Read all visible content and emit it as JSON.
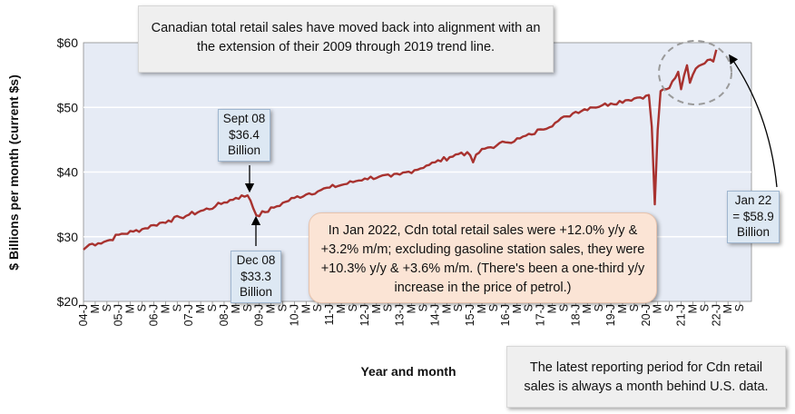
{
  "notes": {
    "top": "Canadian total retail sales have moved back into alignment with an the extension of their 2009 through 2019 trend line.",
    "middle": "In Jan 2022, Cdn total retail sales were +12.0% y/y & +3.2% m/m; excluding gasoline station sales, they were +10.3% y/y & +3.6% m/m. (There's been a one-third y/y increase in the price of petrol.)",
    "bottom": "The latest reporting period for Cdn retail sales is always a month behind U.S. data."
  },
  "callouts": {
    "sept08": "Sept 08 $36.4 Billion",
    "dec08": "Dec 08 $33.3 Billion",
    "jan22": "Jan 22 = $58.9 Billion"
  },
  "colors": {
    "line": "#a8322f",
    "plot_bg": "#e6ebf5",
    "gridline": "#ffffff",
    "mid_note_bg": "#fbe4d5",
    "callout_bg": "#dde8f3",
    "note_bg": "#efefef",
    "ellipse": "#9a9a9a"
  },
  "chart_data": {
    "type": "line",
    "title": "",
    "xlabel": "Year and month",
    "ylabel": "$ Billions per month  (current $s)",
    "ylim": [
      20,
      60
    ],
    "y_ticks": [
      "$20",
      "$30",
      "$40",
      "$50",
      "$60"
    ],
    "y_tick_values": [
      20,
      30,
      40,
      50,
      60
    ],
    "grid": true,
    "x_tick_labels": [
      "04-J",
      "M",
      "S",
      "05-J",
      "M",
      "S",
      "06-J",
      "M",
      "S",
      "07-J",
      "M",
      "S",
      "08-J",
      "M",
      "S",
      "09-J",
      "M",
      "S",
      "10-J",
      "M",
      "S",
      "11-J",
      "M",
      "S",
      "12-J",
      "M",
      "S",
      "13-J",
      "M",
      "S",
      "14-J",
      "M",
      "S",
      "15-J",
      "M",
      "S",
      "16-J",
      "M",
      "S",
      "17-J",
      "M",
      "S",
      "18-J",
      "M",
      "S",
      "19-J",
      "M",
      "S",
      "20-J",
      "M",
      "S",
      "21-J",
      "M",
      "S",
      "22-J",
      "M",
      "S"
    ],
    "x_start": "2004-01",
    "x_end": "2022-01",
    "series": [
      {
        "name": "",
        "anchors": [
          [
            "2004-01",
            28.0
          ],
          [
            "2004-03",
            28.8
          ],
          [
            "2004-06",
            29.0
          ],
          [
            "2004-10",
            29.5
          ],
          [
            "2005-01",
            30.3
          ],
          [
            "2005-06",
            30.8
          ],
          [
            "2005-10",
            31.3
          ],
          [
            "2006-01",
            31.8
          ],
          [
            "2006-06",
            32.5
          ],
          [
            "2006-10",
            33.0
          ],
          [
            "2007-01",
            33.4
          ],
          [
            "2007-06",
            34.1
          ],
          [
            "2007-10",
            34.7
          ],
          [
            "2008-01",
            35.3
          ],
          [
            "2008-05",
            36.0
          ],
          [
            "2008-09",
            36.4
          ],
          [
            "2008-10",
            35.6
          ],
          [
            "2008-12",
            33.3
          ],
          [
            "2009-03",
            33.8
          ],
          [
            "2009-06",
            34.5
          ],
          [
            "2009-10",
            35.4
          ],
          [
            "2010-01",
            36.0
          ],
          [
            "2010-06",
            36.7
          ],
          [
            "2010-10",
            37.2
          ],
          [
            "2011-01",
            37.6
          ],
          [
            "2011-06",
            38.1
          ],
          [
            "2011-10",
            38.6
          ],
          [
            "2012-01",
            39.0
          ],
          [
            "2012-06",
            39.3
          ],
          [
            "2012-10",
            39.3
          ],
          [
            "2013-01",
            39.6
          ],
          [
            "2013-06",
            40.3
          ],
          [
            "2013-10",
            41.0
          ],
          [
            "2014-01",
            41.5
          ],
          [
            "2014-06",
            42.3
          ],
          [
            "2014-10",
            43.0
          ],
          [
            "2015-01",
            42.6
          ],
          [
            "2015-02",
            41.5
          ],
          [
            "2015-03",
            42.7
          ],
          [
            "2015-06",
            43.6
          ],
          [
            "2015-10",
            44.1
          ],
          [
            "2016-01",
            44.6
          ],
          [
            "2016-06",
            45.2
          ],
          [
            "2016-10",
            45.8
          ],
          [
            "2017-01",
            46.6
          ],
          [
            "2017-06",
            47.6
          ],
          [
            "2017-10",
            48.6
          ],
          [
            "2018-01",
            49.3
          ],
          [
            "2018-06",
            50.0
          ],
          [
            "2018-10",
            50.3
          ],
          [
            "2019-01",
            50.6
          ],
          [
            "2019-06",
            51.1
          ],
          [
            "2019-10",
            51.5
          ],
          [
            "2020-01",
            51.8
          ],
          [
            "2020-02",
            51.9
          ],
          [
            "2020-03",
            47.0
          ],
          [
            "2020-04",
            35.0
          ],
          [
            "2020-05",
            46.5
          ],
          [
            "2020-06",
            52.5
          ],
          [
            "2020-09",
            53.0
          ],
          [
            "2020-12",
            55.5
          ],
          [
            "2021-01",
            52.8
          ],
          [
            "2021-03",
            56.5
          ],
          [
            "2021-04",
            53.8
          ],
          [
            "2021-06",
            56.0
          ],
          [
            "2021-08",
            56.6
          ],
          [
            "2021-10",
            57.3
          ],
          [
            "2021-11",
            57.4
          ],
          [
            "2021-12",
            57.1
          ],
          [
            "2022-01",
            58.9
          ]
        ]
      }
    ]
  }
}
